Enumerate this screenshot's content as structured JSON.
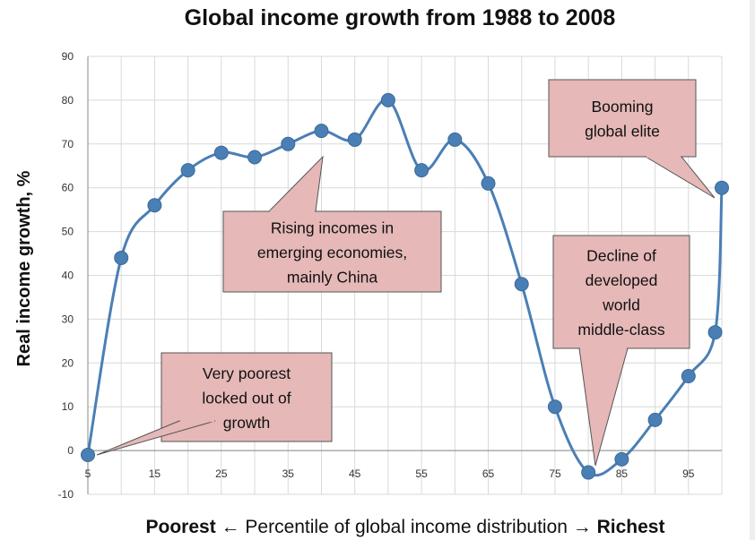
{
  "chart_data": {
    "type": "line",
    "title": "Global income growth from 1988 to 2008",
    "ylabel": "Real income growth, %",
    "xlabel": {
      "left": "Poorest",
      "middle": "Percentile of global income distribution",
      "right": "Richest",
      "left_arrow": "←",
      "right_arrow": "→"
    },
    "xlim": [
      5,
      100
    ],
    "ylim": [
      -10,
      90
    ],
    "x_ticks": [
      5,
      15,
      25,
      35,
      45,
      55,
      65,
      75,
      85,
      95
    ],
    "y_ticks": [
      -10,
      0,
      10,
      20,
      30,
      40,
      50,
      60,
      70,
      80,
      90
    ],
    "grid": true,
    "series": [
      {
        "x": [
          5,
          10,
          15,
          20,
          25,
          30,
          35,
          40,
          45,
          50,
          55,
          60,
          65,
          70,
          75,
          80,
          85,
          90,
          95,
          99,
          100
        ],
        "values": [
          -1,
          44,
          56,
          64,
          68,
          67,
          70,
          73,
          71,
          80,
          64,
          71,
          61,
          38,
          10,
          -5,
          -2,
          7,
          17,
          27,
          60
        ]
      }
    ],
    "series_color": "#4a7fb5",
    "annotations": [
      {
        "id": "very-poorest",
        "lines": [
          "Very poorest",
          "locked out of",
          "growth"
        ]
      },
      {
        "id": "rising-incomes",
        "lines": [
          "Rising incomes in",
          "emerging economies,",
          "mainly China"
        ]
      },
      {
        "id": "decline-middle",
        "lines": [
          "Decline of",
          "developed",
          "world",
          "middle-class"
        ]
      },
      {
        "id": "booming-elite",
        "lines": [
          "Booming",
          "global elite"
        ]
      }
    ],
    "annotation_fill": "#e6b8b8"
  }
}
